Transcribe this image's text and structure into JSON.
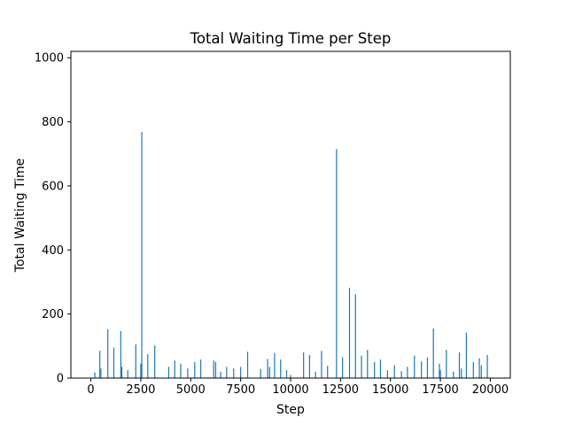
{
  "chart_data": {
    "type": "bar",
    "title": "Total Waiting Time per Step",
    "xlabel": "Step",
    "ylabel": "Total Waiting Time",
    "xlim": [
      -1000,
      21000
    ],
    "ylim": [
      0,
      1020
    ],
    "xticks": [
      0,
      2500,
      5000,
      7500,
      10000,
      12500,
      15000,
      17500,
      20000
    ],
    "yticks": [
      0,
      200,
      400,
      600,
      800,
      1000
    ],
    "grid": false,
    "legend": "none",
    "bar_color": "#1f77b4",
    "series": [
      {
        "x": [
          200,
          450,
          500,
          850,
          1150,
          1500,
          1550,
          1850,
          2250,
          2500,
          2550,
          2850,
          3200,
          3900,
          4200,
          4500,
          4850,
          5200,
          5500,
          6150,
          6250,
          6500,
          6800,
          7150,
          7500,
          7850,
          8500,
          8850,
          8950,
          9200,
          9500,
          9800,
          10000,
          10650,
          10950,
          11250,
          11550,
          11850,
          12300,
          12600,
          12950,
          13250,
          13550,
          13850,
          14200,
          14500,
          14850,
          15200,
          15550,
          15850,
          16200,
          16550,
          16850,
          17150,
          17450,
          17500,
          17800,
          18150,
          18450,
          18550,
          18800,
          19150,
          19450,
          19550,
          19850
        ],
        "values": [
          18,
          85,
          30,
          152,
          95,
          147,
          35,
          25,
          105,
          45,
          768,
          75,
          102,
          35,
          55,
          45,
          30,
          50,
          58,
          55,
          50,
          20,
          35,
          30,
          35,
          82,
          28,
          60,
          35,
          78,
          58,
          25,
          10,
          80,
          72,
          20,
          85,
          38,
          715,
          65,
          282,
          262,
          70,
          88,
          50,
          58,
          25,
          40,
          22,
          35,
          70,
          52,
          65,
          155,
          45,
          25,
          88,
          20,
          80,
          30,
          142,
          50,
          62,
          40,
          72
        ]
      }
    ]
  }
}
